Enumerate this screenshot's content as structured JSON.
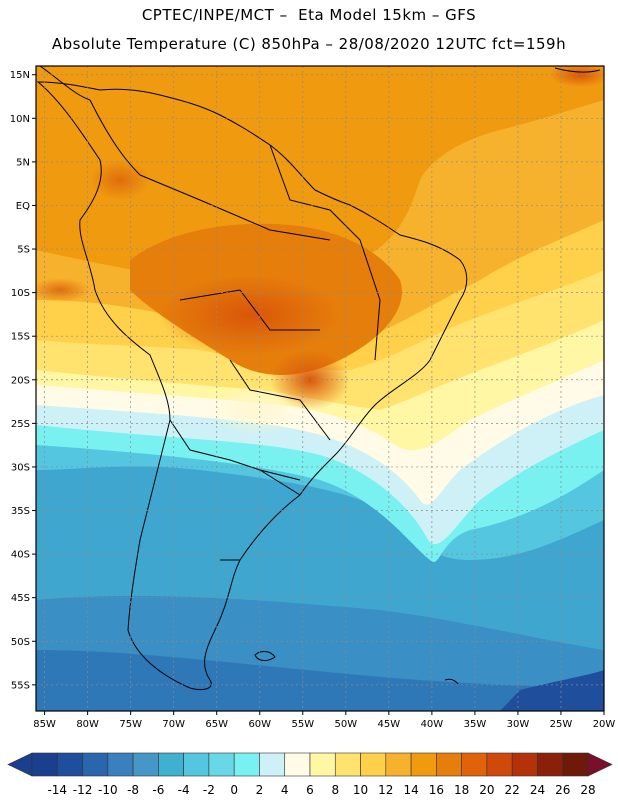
{
  "header": {
    "line1": "CPTEC/INPE/MCT –  Eta Model 15km – GFS",
    "line2": "Absolute Temperature (C) 850hPa – 28/08/2020 12UTC fct=159h"
  },
  "map": {
    "lat_labels": [
      "15N",
      "10N",
      "5N",
      "EQ",
      "5S",
      "10S",
      "15S",
      "20S",
      "25S",
      "30S",
      "35S",
      "40S",
      "45S",
      "50S",
      "55S"
    ],
    "lat_values": [
      15,
      10,
      5,
      0,
      -5,
      -10,
      -15,
      -20,
      -25,
      -30,
      -35,
      -40,
      -45,
      -50,
      -55
    ],
    "lon_labels": [
      "85W",
      "80W",
      "75W",
      "70W",
      "65W",
      "60W",
      "55W",
      "50W",
      "45W",
      "40W",
      "35W",
      "30W",
      "25W",
      "20W"
    ],
    "lon_values": [
      -85,
      -80,
      -75,
      -70,
      -65,
      -60,
      -55,
      -50,
      -45,
      -40,
      -35,
      -30,
      -25,
      -20
    ],
    "extent": {
      "lon_min": -86,
      "lon_max": -20,
      "lat_min": -58,
      "lat_max": 16
    },
    "gridlines": true,
    "continent_outlines": true
  },
  "colorbar": {
    "labels": [
      "-14",
      "-12",
      "-10",
      "-8",
      "-6",
      "-4",
      "-2",
      "0",
      "2",
      "4",
      "6",
      "8",
      "10",
      "12",
      "14",
      "16",
      "18",
      "20",
      "22",
      "24",
      "26",
      "28"
    ],
    "colors": [
      "#1a3f8f",
      "#1f4f9c",
      "#2a66ad",
      "#3a7fbe",
      "#4796c8",
      "#3fb0d0",
      "#55c6df",
      "#68d8e6",
      "#79f1f1",
      "#cdf1f6",
      "#fffbe6",
      "#fff7a3",
      "#ffe36e",
      "#ffd04a",
      "#f7b22d",
      "#f09a10",
      "#e67e0b",
      "#e0620a",
      "#cf4a0a",
      "#b3320a",
      "#8a1f0a",
      "#6e1a08"
    ],
    "extend_low_color": "#1a3f8f",
    "extend_high_color": "#7a0f2c"
  }
}
